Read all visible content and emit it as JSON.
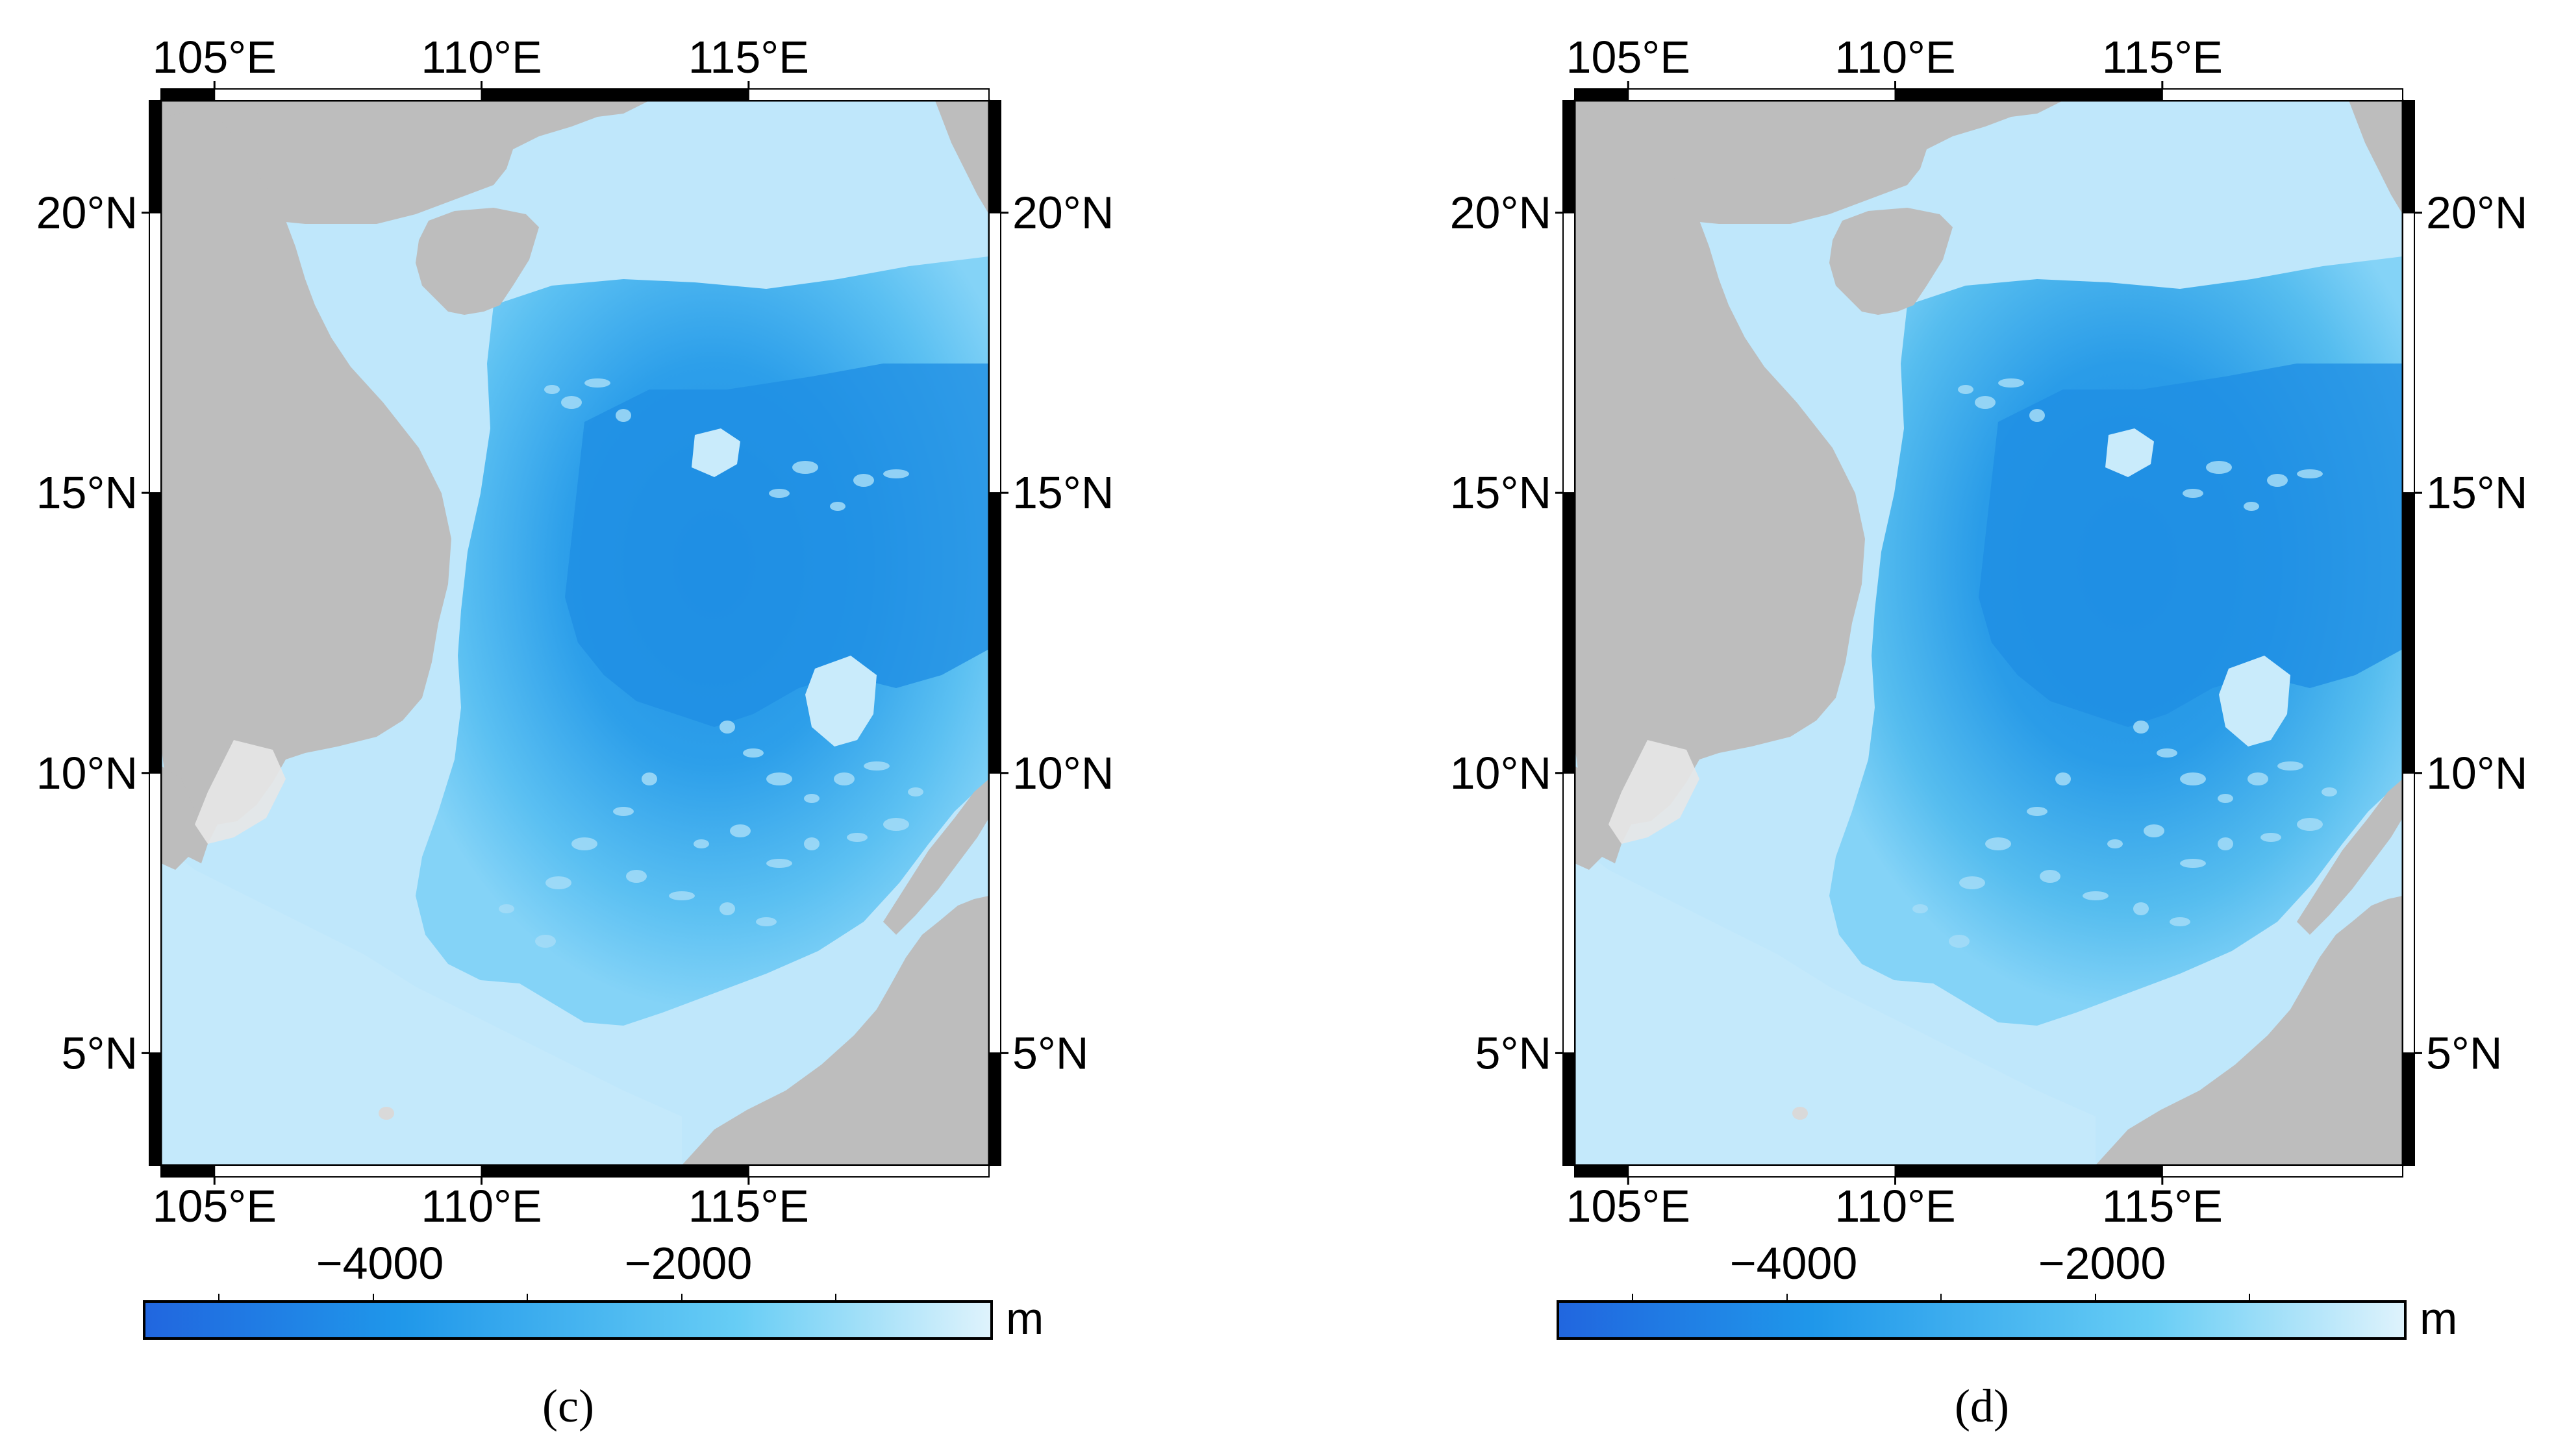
{
  "panels": [
    {
      "id": "c",
      "caption": "(c)",
      "top_ticks": [
        "105°E",
        "110°E",
        "115°E"
      ],
      "bottom_ticks": [
        "105°E",
        "110°E",
        "115°E"
      ],
      "left_ticks": [
        "20°N",
        "15°N",
        "10°N",
        "5°N"
      ],
      "right_ticks": [
        "20°N",
        "15°N",
        "10°N",
        "5°N"
      ],
      "colorbar": {
        "tick_labels": [
          "−4000",
          "−2000"
        ],
        "unit": "m"
      }
    },
    {
      "id": "d",
      "caption": "(d)",
      "top_ticks": [
        "105°E",
        "110°E",
        "115°E"
      ],
      "bottom_ticks": [
        "105°E",
        "110°E",
        "115°E"
      ],
      "left_ticks": [
        "20°N",
        "15°N",
        "10°N",
        "5°N"
      ],
      "right_ticks": [
        "20°N",
        "15°N",
        "10°N",
        "5°N"
      ],
      "colorbar": {
        "tick_labels": [
          "−4000",
          "−2000"
        ],
        "unit": "m"
      }
    }
  ],
  "map_extent": {
    "lon_range": [
      104,
      119.5
    ],
    "lat_range": [
      3,
      22
    ]
  },
  "colors": {
    "land": "#bdbdbd",
    "shelf_water": "#bfe7fb",
    "mid_depth": "#61c3f2",
    "deep_water": "#1f8fe3",
    "frame": "#000000"
  }
}
